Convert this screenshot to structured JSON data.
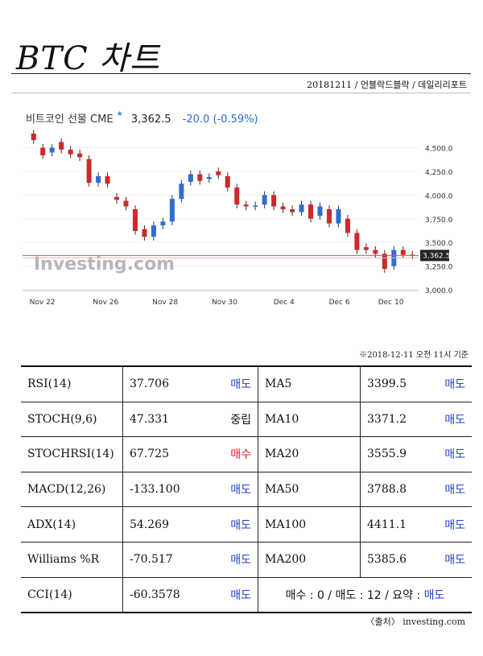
{
  "header": {
    "title": "BTC 차트",
    "meta": "20181211 / 언블락드블락 / 데일리리포트"
  },
  "chart_quote": {
    "name": "비트코인 선물 CME",
    "price": "3,362.5",
    "change": "-20.0 (-0.59%)"
  },
  "chart_data": {
    "type": "candlestick",
    "x_ticks": [
      "Nov 22",
      "Nov 26",
      "Nov 28",
      "Nov 30",
      "Dec 4",
      "Dec 6",
      "Dec 10"
    ],
    "y_ticks": [
      "4,500.0",
      "4,250.0",
      "4,000.0",
      "3,750.0",
      "3,500.0",
      "3,250.0",
      "3,000.0"
    ],
    "ylim": [
      3000,
      4700
    ],
    "last_price": 3362.5,
    "last_price_label": "3,362.5",
    "closes": [
      4580,
      4420,
      4500,
      4480,
      4430,
      4400,
      4130,
      4200,
      4120,
      3950,
      3880,
      3620,
      3560,
      3680,
      3720,
      3960,
      4120,
      4220,
      4150,
      4190,
      4210,
      4080,
      3900,
      3880,
      3890,
      4000,
      3880,
      3850,
      3820,
      3900,
      3750,
      3880,
      3700,
      3850,
      3600,
      3420,
      3420,
      3380,
      3220,
      3420,
      3370,
      3362
    ],
    "opens": [
      4650,
      4500,
      4450,
      4560,
      4480,
      4440,
      4380,
      4130,
      4200,
      3980,
      3940,
      3850,
      3640,
      3560,
      3680,
      3720,
      3960,
      4140,
      4220,
      4170,
      4250,
      4200,
      4080,
      3900,
      3880,
      3900,
      4000,
      3880,
      3850,
      3820,
      3900,
      3780,
      3850,
      3700,
      3750,
      3600,
      3450,
      3420,
      3380,
      3250,
      3420,
      3370
    ],
    "watermark": "Investing.com"
  },
  "as_of": "※2018-12-11 오전 11시 기준",
  "rows": [
    {
      "name": "RSI(14)",
      "value": "37.706",
      "signal": "매도",
      "kind": "sell",
      "ma": "MA5",
      "ma_value": "3399.5",
      "ma_signal": "매도",
      "ma_kind": "sell"
    },
    {
      "name": "STOCH(9,6)",
      "value": "47.331",
      "signal": "중립",
      "kind": "neutral",
      "ma": "MA10",
      "ma_value": "3371.2",
      "ma_signal": "매도",
      "ma_kind": "sell"
    },
    {
      "name": "STOCHRSI(14)",
      "value": "67.725",
      "signal": "매수",
      "kind": "buy",
      "ma": "MA20",
      "ma_value": "3555.9",
      "ma_signal": "매도",
      "ma_kind": "sell"
    },
    {
      "name": "MACD(12,26)",
      "value": "-133.100",
      "signal": "매도",
      "kind": "sell",
      "ma": "MA50",
      "ma_value": "3788.8",
      "ma_signal": "매도",
      "ma_kind": "sell"
    },
    {
      "name": "ADX(14)",
      "value": "54.269",
      "signal": "매도",
      "kind": "sell",
      "ma": "MA100",
      "ma_value": "4411.1",
      "ma_signal": "매도",
      "ma_kind": "sell"
    },
    {
      "name": "Williams %R",
      "value": "-70.517",
      "signal": "매도",
      "kind": "sell",
      "ma": "MA200",
      "ma_value": "5385.6",
      "ma_signal": "매도",
      "ma_kind": "sell"
    }
  ],
  "last_row": {
    "name": "CCI(14)",
    "value": "-60.3578",
    "signal": "매도",
    "kind": "sell",
    "summary_prefix": "매수 : 0 / 매도 : 12 / 요약 : ",
    "summary_result": "매도"
  },
  "source": "〈출처〉 investing.com"
}
